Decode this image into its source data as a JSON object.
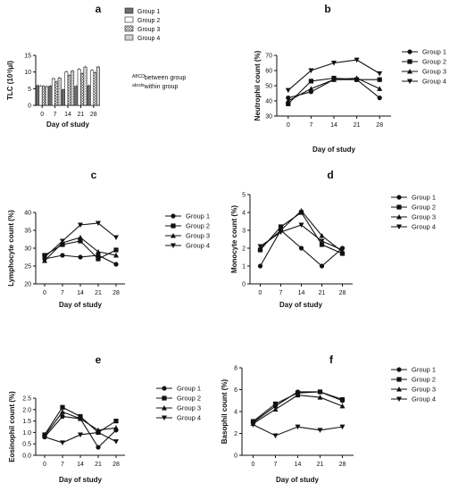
{
  "chart_data": [
    {
      "panel_label": "a",
      "type": "bar",
      "ylabel": "TLC (10³/μl)",
      "xlabel": "Day of study",
      "categories": [
        "0",
        "7",
        "14",
        "21",
        "28"
      ],
      "ylim": [
        0,
        15
      ],
      "yticks": [
        "0",
        "5",
        "10",
        "15"
      ],
      "legend": "right",
      "series": [
        {
          "name": "Group 1",
          "pattern": "dark",
          "values": [
            5.9,
            5.8,
            4.7,
            5.7,
            5.9
          ]
        },
        {
          "name": "Group 2",
          "pattern": "white",
          "values": [
            5.8,
            8.0,
            10.0,
            10.8,
            10.5
          ]
        },
        {
          "name": "Group 3",
          "pattern": "hatch",
          "values": [
            5.7,
            7.0,
            9.0,
            9.5,
            9.8
          ]
        },
        {
          "name": "Group 4",
          "pattern": "light",
          "values": [
            5.6,
            8.2,
            10.3,
            11.5,
            11.5
          ]
        }
      ],
      "annotation_lines": [
        {
          "sup": "ABCD",
          "text": "between group"
        },
        {
          "sup": "abcde",
          "text": "within group"
        }
      ]
    },
    {
      "panel_label": "b",
      "type": "line",
      "ylabel": "Neutrophil count (%)",
      "xlabel": "Day of study",
      "x": [
        0,
        7,
        14,
        21,
        28
      ],
      "xticks": [
        "0",
        "7",
        "14",
        "21",
        "28"
      ],
      "ylim": [
        30,
        70
      ],
      "yticks": [
        "30",
        "40",
        "50",
        "60",
        "70"
      ],
      "legend": "right",
      "series": [
        {
          "name": "Group 1",
          "marker": "circle",
          "values": [
            42,
            46,
            54,
            54,
            42
          ]
        },
        {
          "name": "Group 2",
          "marker": "square",
          "values": [
            38,
            53,
            55,
            54,
            54
          ]
        },
        {
          "name": "Group 3",
          "marker": "triangle-up",
          "values": [
            40,
            48,
            54,
            55,
            48
          ]
        },
        {
          "name": "Group 4",
          "marker": "triangle-down",
          "values": [
            47,
            60,
            65,
            67,
            58
          ]
        }
      ]
    },
    {
      "panel_label": "c",
      "type": "line",
      "ylabel": "Lymphocyte count (%)",
      "xlabel": "Day of study",
      "x": [
        0,
        7,
        14,
        21,
        28
      ],
      "xticks": [
        "0",
        "7",
        "14",
        "21",
        "28"
      ],
      "ylim": [
        20,
        40
      ],
      "yticks": [
        "20",
        "25",
        "30",
        "35",
        "40"
      ],
      "legend": "right",
      "series": [
        {
          "name": "Group 1",
          "marker": "circle",
          "values": [
            27,
            28,
            27.5,
            28,
            25.5
          ]
        },
        {
          "name": "Group 2",
          "marker": "square",
          "values": [
            28,
            31,
            32,
            27,
            29.5
          ]
        },
        {
          "name": "Group 3",
          "marker": "triangle-up",
          "values": [
            26.5,
            31.5,
            33,
            29,
            28
          ]
        },
        {
          "name": "Group 4",
          "marker": "triangle-down",
          "values": [
            27.5,
            32,
            36.5,
            37,
            33
          ]
        }
      ]
    },
    {
      "panel_label": "d",
      "type": "line",
      "ylabel": "Monocyte count (%)",
      "xlabel": "Day of study",
      "x": [
        0,
        7,
        14,
        21,
        28
      ],
      "xticks": [
        "0",
        "7",
        "14",
        "21",
        "28"
      ],
      "ylim": [
        0,
        5
      ],
      "yticks": [
        "0",
        "1",
        "2",
        "3",
        "4",
        "5"
      ],
      "legend": "right",
      "series": [
        {
          "name": "Group 1",
          "marker": "circle",
          "values": [
            1.0,
            3.0,
            2.0,
            1.0,
            2.0
          ]
        },
        {
          "name": "Group 2",
          "marker": "square",
          "values": [
            1.9,
            3.2,
            4.0,
            2.2,
            1.7
          ]
        },
        {
          "name": "Group 3",
          "marker": "triangle-up",
          "values": [
            2.0,
            3.0,
            4.1,
            2.7,
            1.8
          ]
        },
        {
          "name": "Group 4",
          "marker": "triangle-down",
          "values": [
            2.1,
            2.9,
            3.3,
            2.4,
            1.9
          ]
        }
      ]
    },
    {
      "panel_label": "e",
      "type": "line",
      "ylabel": "Eosinophil count (%)",
      "xlabel": "Day of study",
      "x": [
        0,
        7,
        14,
        21,
        28
      ],
      "xticks": [
        "0",
        "7",
        "14",
        "21",
        "28"
      ],
      "ylim": [
        0,
        2.5
      ],
      "yticks": [
        "0.0",
        "0.5",
        "1.0",
        "1.5",
        "2.0",
        "2.5"
      ],
      "legend": "right",
      "series": [
        {
          "name": "Group 1",
          "marker": "circle",
          "values": [
            0.8,
            1.7,
            1.6,
            0.35,
            1.1
          ]
        },
        {
          "name": "Group 2",
          "marker": "square",
          "values": [
            0.9,
            2.1,
            1.7,
            1.0,
            1.5
          ]
        },
        {
          "name": "Group 3",
          "marker": "triangle-up",
          "values": [
            0.85,
            1.9,
            1.6,
            1.1,
            1.2
          ]
        },
        {
          "name": "Group 4",
          "marker": "triangle-down",
          "values": [
            0.8,
            0.55,
            0.9,
            1.0,
            0.6
          ]
        }
      ]
    },
    {
      "panel_label": "f",
      "type": "line",
      "ylabel": "Basophil count (%)",
      "xlabel": "Day of study",
      "x": [
        0,
        7,
        14,
        21,
        28
      ],
      "xticks": [
        "0",
        "7",
        "14",
        "21",
        "28"
      ],
      "ylim": [
        0,
        8
      ],
      "yticks": [
        "0",
        "2",
        "4",
        "6",
        "8"
      ],
      "legend": "right",
      "series": [
        {
          "name": "Group 1",
          "marker": "circle",
          "values": [
            3.0,
            4.5,
            5.8,
            5.8,
            5.0
          ]
        },
        {
          "name": "Group 2",
          "marker": "square",
          "values": [
            3.1,
            4.7,
            5.7,
            5.8,
            5.1
          ]
        },
        {
          "name": "Group 3",
          "marker": "triangle-up",
          "values": [
            2.9,
            4.2,
            5.5,
            5.3,
            4.5
          ]
        },
        {
          "name": "Group 4",
          "marker": "triangle-down",
          "values": [
            2.8,
            1.8,
            2.6,
            2.3,
            2.6
          ]
        }
      ]
    }
  ]
}
